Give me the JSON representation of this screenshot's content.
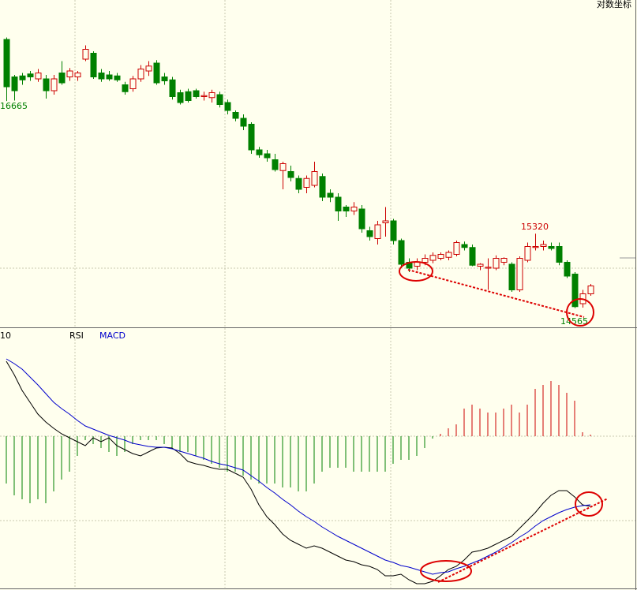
{
  "chart_data": [
    {
      "type": "candlestick",
      "scale_label": "对数坐标",
      "ylim": [
        14370,
        17690
      ],
      "up_color": "#cc0000",
      "down_color": "#008000",
      "open": [
        17290,
        16910,
        16920,
        16940,
        16890,
        16890,
        16770,
        16950,
        16910,
        16910,
        17090,
        17150,
        16950,
        16930,
        16920,
        16830,
        16790,
        16890,
        16970,
        17050,
        16910,
        16880,
        16750,
        16760,
        16770,
        16710,
        16700,
        16730,
        16650,
        16550,
        16490,
        16430,
        16170,
        16130,
        16070,
        15960,
        15950,
        15880,
        15790,
        15810,
        15900,
        15730,
        15690,
        15590,
        15550,
        15570,
        15350,
        15270,
        15430,
        15450,
        15250,
        15030,
        14990,
        15030,
        15050,
        15070,
        15080,
        15110,
        15210,
        15180,
        14990,
        14970,
        14970,
        15030,
        15010,
        14750,
        15050,
        15180,
        15190,
        15190,
        15190,
        15030,
        14910,
        14610,
        14710
      ],
      "high": [
        17310,
        16930,
        16950,
        16970,
        16990,
        16930,
        16930,
        17070,
        17000,
        16970,
        17230,
        17170,
        16990,
        16970,
        16950,
        16860,
        16920,
        17030,
        17070,
        17080,
        16950,
        16910,
        16780,
        16790,
        16790,
        16760,
        16780,
        16760,
        16680,
        16570,
        16530,
        16450,
        16200,
        16170,
        16130,
        16050,
        16010,
        15910,
        15910,
        16050,
        15930,
        15770,
        15730,
        15610,
        15640,
        15610,
        15390,
        15450,
        15590,
        15470,
        15270,
        15070,
        15070,
        15110,
        15130,
        15130,
        15150,
        15250,
        15240,
        15210,
        15020,
        15070,
        15100,
        15080,
        15030,
        15090,
        15230,
        15320,
        15250,
        15230,
        15230,
        15050,
        14930,
        14750,
        14810
      ],
      "low": [
        16665,
        16670,
        16830,
        16870,
        16860,
        16690,
        16730,
        16830,
        16870,
        16870,
        17070,
        16890,
        16860,
        16870,
        16860,
        16730,
        16760,
        16860,
        16920,
        16830,
        16830,
        16680,
        16630,
        16650,
        16690,
        16670,
        16650,
        16600,
        16530,
        16460,
        16370,
        16130,
        16090,
        16050,
        15950,
        15770,
        15850,
        15730,
        15730,
        15790,
        15650,
        15640,
        15450,
        15490,
        15510,
        15330,
        15250,
        15210,
        15290,
        15210,
        14970,
        14930,
        14950,
        15000,
        15020,
        15050,
        15050,
        15090,
        15150,
        14990,
        14950,
        14750,
        14950,
        15000,
        14730,
        14730,
        15030,
        15150,
        15150,
        15150,
        15000,
        14870,
        14565,
        14570,
        14690
      ],
      "close": [
        16810,
        16770,
        16880,
        16910,
        16950,
        16770,
        16890,
        16850,
        16970,
        16950,
        17190,
        16910,
        16890,
        16890,
        16880,
        16760,
        16890,
        16990,
        17020,
        16850,
        16870,
        16710,
        16650,
        16670,
        16710,
        16720,
        16750,
        16630,
        16570,
        16490,
        16410,
        16170,
        16120,
        16090,
        15970,
        16030,
        15890,
        15770,
        15880,
        15950,
        15690,
        15690,
        15550,
        15550,
        15590,
        15370,
        15290,
        15410,
        15450,
        15250,
        15010,
        14970,
        15030,
        15070,
        15100,
        15110,
        15130,
        15230,
        15180,
        15000,
        15010,
        14980,
        15070,
        15070,
        14750,
        15070,
        15190,
        15190,
        15210,
        15170,
        15030,
        14890,
        14580,
        14710,
        14790
      ],
      "annotations": [
        {
          "text": "16665",
          "color": "#008000"
        },
        {
          "text": "15320",
          "color": "#cc0000"
        },
        {
          "text": "14565",
          "color": "#008000"
        }
      ]
    },
    {
      "type": "macd",
      "indicator_labels": [
        "10",
        "RSI",
        "MACD"
      ],
      "ylim": [
        -190,
        135
      ],
      "up_color": "#cc0000",
      "down_color": "#008000",
      "dif_color": "#000000",
      "dea_color": "#0000cc",
      "histogram": [
        -60,
        -75,
        -80,
        -85,
        -80,
        -85,
        -70,
        -55,
        -45,
        -25,
        -5,
        -10,
        -15,
        -20,
        -25,
        -20,
        -10,
        -5,
        -5,
        -5,
        -10,
        -15,
        -20,
        -20,
        -25,
        -30,
        -35,
        -40,
        -45,
        -45,
        -50,
        -55,
        -60,
        -60,
        -60,
        -65,
        -65,
        -70,
        -70,
        -60,
        -45,
        -40,
        -40,
        -40,
        -45,
        -45,
        -45,
        -45,
        -45,
        -35,
        -30,
        -30,
        -25,
        -15,
        -3,
        3,
        10,
        15,
        35,
        40,
        35,
        30,
        30,
        35,
        40,
        30,
        40,
        60,
        65,
        70,
        65,
        55,
        45,
        5,
        2
      ],
      "dif": [
        95,
        78,
        58,
        43,
        28,
        18,
        10,
        3,
        -2,
        -7,
        -12,
        -2,
        -7,
        -2,
        -12,
        -17,
        -22,
        -25,
        -20,
        -15,
        -14,
        -15,
        -22,
        -32,
        -35,
        -37,
        -40,
        -42,
        -42,
        -47,
        -52,
        -67,
        -87,
        -102,
        -112,
        -124,
        -132,
        -137,
        -142,
        -139,
        -142,
        -147,
        -152,
        -157,
        -159,
        -163,
        -165,
        -169,
        -177,
        -177,
        -175,
        -182,
        -187,
        -187,
        -184,
        -177,
        -169,
        -165,
        -157,
        -147,
        -145,
        -142,
        -137,
        -132,
        -127,
        -117,
        -107,
        -97,
        -85,
        -75,
        -69,
        -69,
        -77,
        -87,
        -89
      ],
      "dea": [
        98,
        92,
        85,
        75,
        65,
        54,
        43,
        35,
        28,
        20,
        13,
        9,
        5,
        1,
        -2,
        -5,
        -9,
        -11,
        -13,
        -14,
        -14,
        -16,
        -19,
        -22,
        -25,
        -28,
        -32,
        -35,
        -37,
        -40,
        -43,
        -50,
        -57,
        -65,
        -72,
        -80,
        -87,
        -95,
        -102,
        -108,
        -115,
        -121,
        -127,
        -132,
        -137,
        -142,
        -147,
        -152,
        -157,
        -160,
        -164,
        -166,
        -169,
        -172,
        -175,
        -173,
        -172,
        -168,
        -165,
        -161,
        -157,
        -152,
        -147,
        -141,
        -135,
        -128,
        -122,
        -114,
        -107,
        -102,
        -97,
        -93,
        -90,
        -88,
        -87
      ]
    }
  ]
}
